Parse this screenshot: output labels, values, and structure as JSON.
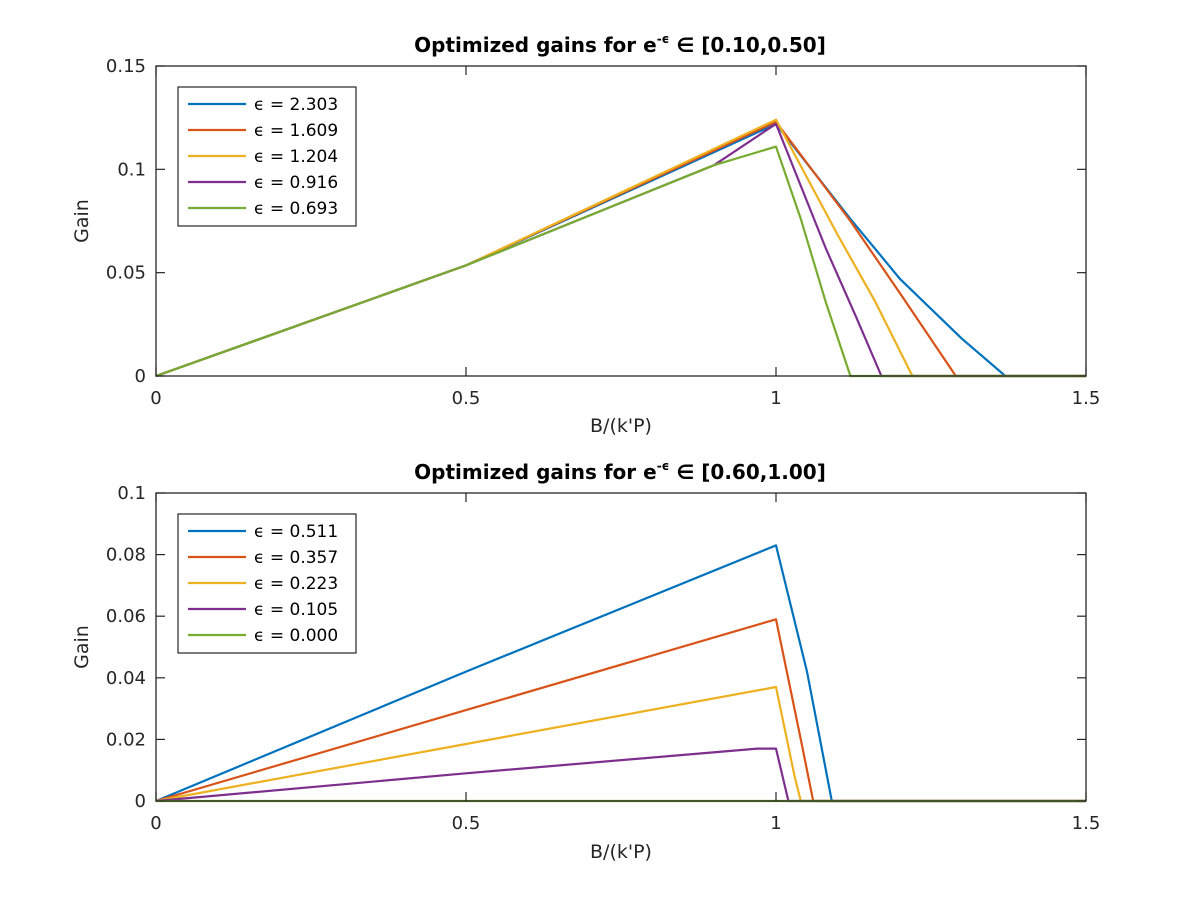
{
  "chart_data": [
    {
      "type": "line",
      "title": "Optimized gains for e",
      "title_superscript": "-ϵ",
      "title_suffix": " ∈ [0.10,0.50]",
      "xlabel": "B/(k'P)",
      "ylabel": "Gain",
      "xlim": [
        0,
        1.5
      ],
      "ylim": [
        0,
        0.15
      ],
      "xticks": [
        0,
        0.5,
        1,
        1.5
      ],
      "xtick_labels": [
        "0",
        "0.5",
        "1",
        "1.5"
      ],
      "yticks": [
        0,
        0.05,
        0.1,
        0.15
      ],
      "ytick_labels": [
        "0",
        "0.05",
        "0.1",
        "0.15"
      ],
      "legend_position": "top-left",
      "series": [
        {
          "name": "ϵ = 2.303",
          "color": "#0072BD",
          "x": [
            0,
            0.5,
            1.0,
            1.12,
            1.2,
            1.3,
            1.37,
            1.5
          ],
          "values": [
            0,
            0.0535,
            0.122,
            0.076,
            0.047,
            0.018,
            0,
            0
          ]
        },
        {
          "name": "ϵ = 1.609",
          "color": "#D95319",
          "x": [
            0,
            0.5,
            1.0,
            1.12,
            1.2,
            1.29,
            1.5
          ],
          "values": [
            0,
            0.0535,
            0.123,
            0.075,
            0.04,
            0,
            0
          ]
        },
        {
          "name": "ϵ = 1.204",
          "color": "#EDB120",
          "x": [
            0,
            0.5,
            1.0,
            1.1,
            1.16,
            1.22,
            1.5
          ],
          "values": [
            0,
            0.0535,
            0.124,
            0.068,
            0.036,
            0,
            0
          ]
        },
        {
          "name": "ϵ = 0.916",
          "color": "#7E2F8E",
          "x": [
            0,
            0.5,
            0.9,
            1.0,
            1.08,
            1.13,
            1.17,
            1.5
          ],
          "values": [
            0,
            0.0535,
            0.102,
            0.122,
            0.062,
            0.028,
            0,
            0
          ]
        },
        {
          "name": "ϵ = 0.693",
          "color": "#77AC30",
          "x": [
            0,
            0.5,
            0.9,
            1.0,
            1.04,
            1.08,
            1.12,
            1.5
          ],
          "values": [
            0,
            0.0535,
            0.102,
            0.111,
            0.076,
            0.036,
            0,
            0
          ]
        }
      ]
    },
    {
      "type": "line",
      "title": "Optimized gains for e",
      "title_superscript": "-ϵ",
      "title_suffix": " ∈ [0.60,1.00]",
      "xlabel": "B/(k'P)",
      "ylabel": "Gain",
      "xlim": [
        0,
        1.5
      ],
      "ylim": [
        0,
        0.1
      ],
      "xticks": [
        0,
        0.5,
        1,
        1.5
      ],
      "xtick_labels": [
        "0",
        "0.5",
        "1",
        "1.5"
      ],
      "yticks": [
        0,
        0.02,
        0.04,
        0.06,
        0.08,
        0.1
      ],
      "ytick_labels": [
        "0",
        "0.02",
        "0.04",
        "0.06",
        "0.08",
        "0.1"
      ],
      "legend_position": "top-left",
      "series": [
        {
          "name": "ϵ = 0.511",
          "color": "#0072BD",
          "x": [
            0,
            0.5,
            1.0,
            1.05,
            1.09,
            1.5
          ],
          "values": [
            0,
            0.042,
            0.083,
            0.042,
            0,
            0
          ]
        },
        {
          "name": "ϵ = 0.357",
          "color": "#D95319",
          "x": [
            0,
            0.5,
            1.0,
            1.04,
            1.06,
            1.5
          ],
          "values": [
            0,
            0.0295,
            0.059,
            0.02,
            0,
            0
          ]
        },
        {
          "name": "ϵ = 0.223",
          "color": "#EDB120",
          "x": [
            0,
            0.5,
            1.0,
            1.03,
            1.04,
            1.5
          ],
          "values": [
            0,
            0.0185,
            0.037,
            0.008,
            0,
            0
          ]
        },
        {
          "name": "ϵ = 0.105",
          "color": "#7E2F8E",
          "x": [
            0,
            0.5,
            0.97,
            1.0,
            1.02,
            1.5
          ],
          "values": [
            0,
            0.009,
            0.017,
            0.017,
            0,
            0
          ]
        },
        {
          "name": "ϵ = 0.000",
          "color": "#77AC30",
          "x": [
            0,
            1.5
          ],
          "values": [
            0,
            0
          ]
        }
      ]
    }
  ]
}
